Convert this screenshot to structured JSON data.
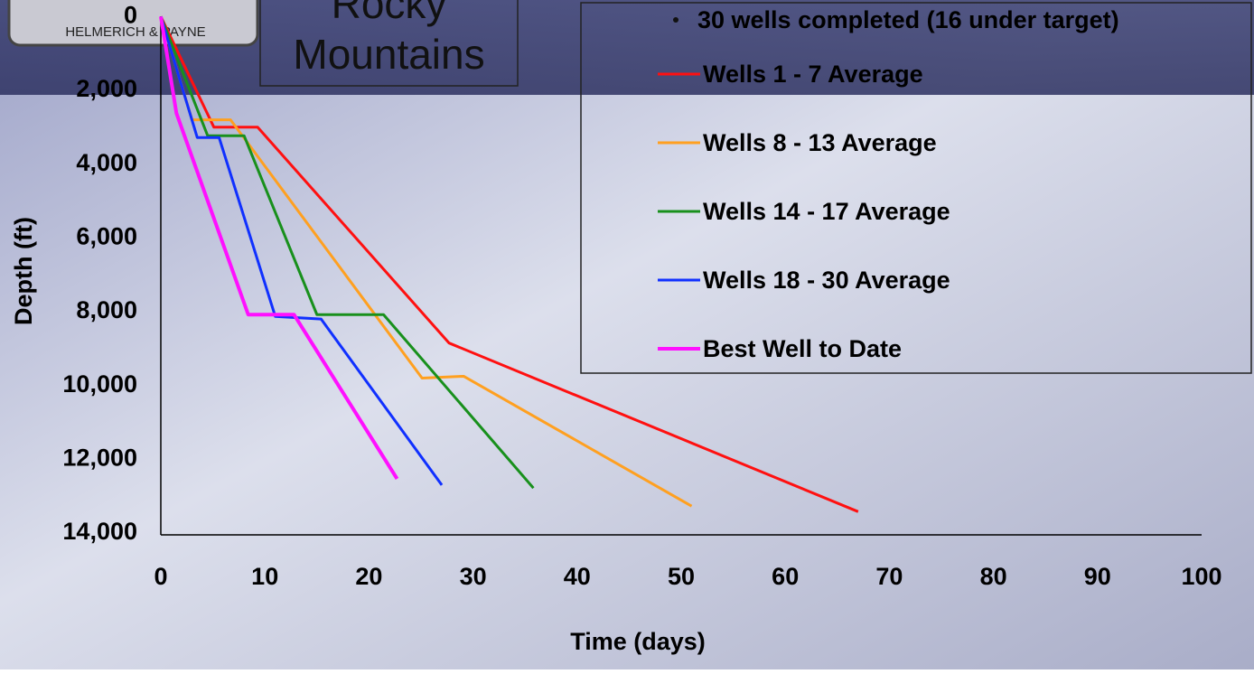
{
  "chart_data": {
    "type": "line",
    "title": "Rocky Mountains",
    "logo_text": "HELMERICH & PAYNE",
    "note": "30 wells completed (16 under target)",
    "x_label": "Time (days)",
    "y_label": "Depth (ft)",
    "xlim": [
      0,
      100
    ],
    "xticks": [
      0,
      10,
      20,
      30,
      40,
      50,
      60,
      70,
      80,
      90,
      100
    ],
    "ylim": [
      14000,
      0
    ],
    "yticks": [
      0,
      {
        "value": 2000,
        "label": "2,000"
      },
      {
        "value": 4000,
        "label": "4,000"
      },
      {
        "value": 6000,
        "label": "6,000"
      },
      {
        "value": 8000,
        "label": "8,000"
      },
      {
        "value": 10000,
        "label": "10,000"
      },
      {
        "value": 12000,
        "label": "12,000"
      },
      {
        "value": 14000,
        "label": "14,000"
      }
    ],
    "series": [
      {
        "name": "Wells 1 - 7 Average",
        "color": "#ff1010",
        "x": [
          0,
          5.1,
          9.3,
          27.7,
          67
        ],
        "values": [
          0,
          3000,
          3000,
          8850,
          13420
        ]
      },
      {
        "name": "Wells 8 - 13 Average",
        "color": "#ffa020",
        "x": [
          0,
          3,
          6.7,
          25.1,
          29.1,
          51
        ],
        "values": [
          0,
          2800,
          2800,
          9800,
          9750,
          13270
        ]
      },
      {
        "name": "Wells 14 - 17 Average",
        "color": "#18901c",
        "x": [
          0,
          4.5,
          8,
          15,
          21.4,
          35.8
        ],
        "values": [
          0,
          3230,
          3230,
          8080,
          8080,
          12780
        ]
      },
      {
        "name": "Wells 18 - 30 Average",
        "color": "#1030ff",
        "x": [
          0,
          3.5,
          5.6,
          11,
          15.4,
          27
        ],
        "values": [
          0,
          3280,
          3280,
          8130,
          8200,
          12700
        ]
      },
      {
        "name": "Best Well to Date",
        "color": "#ff10ff",
        "x": [
          0,
          1.5,
          8.4,
          12.8,
          22.7
        ],
        "values": [
          0,
          2620,
          8080,
          8080,
          12530
        ]
      }
    ]
  }
}
